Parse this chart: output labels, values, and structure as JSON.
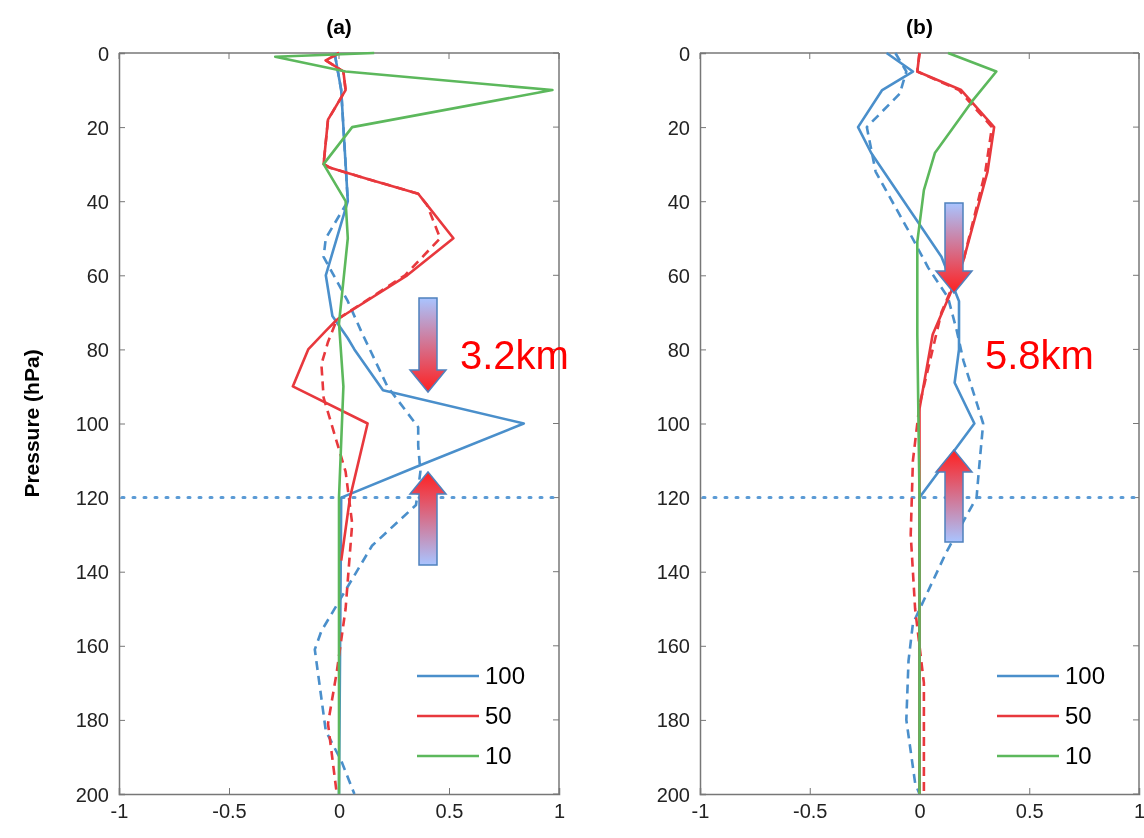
{
  "chart_data": [
    {
      "type": "line",
      "title": "(a)",
      "ylabel": "Pressure (hPa)",
      "xlim": [
        -1,
        1
      ],
      "xticks": [
        -1,
        -0.5,
        0,
        0.5,
        1
      ],
      "ylim": [
        200,
        0
      ],
      "yticks": [
        0,
        20,
        40,
        60,
        80,
        100,
        120,
        140,
        160,
        180,
        200
      ],
      "legend": "bottom right",
      "grid": false,
      "ref_lines": [
        {
          "axis": "y",
          "value": 120,
          "color": "#5b9bd5",
          "line_style": "dotted"
        }
      ],
      "annotations": [
        "3.2km"
      ],
      "series": [
        {
          "name": "100",
          "color": "#4a8fcb",
          "line_style": "solid",
          "x": [
            -0.02,
            0.01,
            0.02,
            0.03,
            0.04,
            -0.06,
            -0.03,
            0.04,
            0.07,
            0.2,
            0.84,
            0.38,
            0.01,
            0.0
          ],
          "values": [
            0,
            10,
            20,
            30,
            40,
            60,
            71,
            77,
            80,
            91,
            100,
            111,
            120,
            200
          ]
        },
        {
          "color": "#4a8fcb",
          "line_style": "dashed",
          "x": [
            -0.02,
            0.01,
            0.02,
            0.03,
            0.04,
            -0.06,
            -0.07,
            0.04,
            0.1,
            0.22,
            0.36,
            0.36,
            0.37,
            0.35,
            0.15,
            0.04,
            -0.08,
            -0.11,
            -0.06,
            0.01,
            0.07
          ],
          "values": [
            0,
            10,
            20,
            30,
            40,
            50,
            55,
            67,
            75,
            90,
            101,
            106,
            113,
            122,
            133,
            144,
            156,
            161,
            183,
            191,
            200
          ]
        },
        {
          "name": "50",
          "color": "#e8383d",
          "line_style": "solid",
          "x": [
            0.0,
            -0.06,
            0.02,
            0.03,
            -0.05,
            -0.06,
            -0.07,
            -0.04,
            0.13,
            0.36,
            0.4,
            0.52,
            0.31,
            -0.01,
            -0.06,
            -0.14,
            -0.21,
            0.13,
            0.05,
            0.01
          ],
          "values": [
            0,
            2,
            5,
            10,
            18,
            24,
            30,
            31,
            34,
            38,
            41,
            50,
            60,
            72,
            75,
            80,
            90,
            100,
            120,
            137
          ]
        },
        {
          "color": "#e8383d",
          "line_style": "dashed",
          "x": [
            0.0,
            -0.06,
            0.02,
            0.03,
            -0.05,
            -0.06,
            -0.07,
            -0.04,
            0.13,
            0.36,
            0.4,
            0.46,
            0.3,
            -0.01,
            -0.05,
            -0.08,
            -0.07,
            0.03,
            0.06,
            0.03,
            -0.01,
            -0.05,
            -0.01
          ],
          "values": [
            0,
            2,
            5,
            10,
            18,
            24,
            30,
            31,
            34,
            38,
            41,
            50,
            60,
            72,
            78,
            84,
            93,
            113,
            127,
            150,
            167,
            181,
            200
          ]
        },
        {
          "name": "10",
          "color": "#5cb85c",
          "line_style": "solid",
          "x": [
            0.16,
            -0.29,
            0.03,
            0.97,
            0.06,
            -0.07,
            0.03,
            0.04,
            0.0,
            0.02,
            0.0,
            0.0
          ],
          "values": [
            0,
            1,
            5,
            10,
            20,
            30,
            40,
            50,
            73,
            90,
            120,
            200
          ]
        }
      ]
    },
    {
      "type": "line",
      "title": "(b)",
      "xlim": [
        -1,
        1
      ],
      "xticks": [
        -1,
        -0.5,
        0,
        0.5,
        1
      ],
      "ylim": [
        200,
        0
      ],
      "yticks": [
        0,
        20,
        40,
        60,
        80,
        100,
        120,
        140,
        160,
        180,
        200
      ],
      "legend": "bottom right",
      "grid": false,
      "ref_lines": [
        {
          "axis": "y",
          "value": 120,
          "color": "#5b9bd5",
          "line_style": "dotted"
        }
      ],
      "annotations": [
        "5.8km"
      ],
      "series": [
        {
          "name": "100",
          "color": "#4a8fcb",
          "line_style": "solid",
          "x": [
            -0.15,
            -0.03,
            -0.17,
            -0.28,
            -0.22,
            0.1,
            0.18,
            0.18,
            0.18,
            0.16,
            0.25,
            0.0,
            0.0
          ],
          "values": [
            0,
            5,
            10,
            20,
            27,
            55,
            67,
            75,
            80,
            89,
            100,
            120,
            200
          ]
        },
        {
          "color": "#4a8fcb",
          "line_style": "dashed",
          "x": [
            -0.11,
            -0.06,
            -0.09,
            -0.24,
            -0.2,
            -0.05,
            0.04,
            0.13,
            0.17,
            0.2,
            0.29,
            0.27,
            0.26,
            0.12,
            -0.03,
            -0.05,
            -0.06,
            -0.02,
            0.0
          ],
          "values": [
            0,
            5,
            11,
            20,
            32,
            48,
            58,
            66,
            75,
            83,
            100,
            113,
            120,
            135,
            154,
            164,
            180,
            197,
            200
          ]
        },
        {
          "name": "50",
          "color": "#e8383d",
          "line_style": "solid",
          "x": [
            0.0,
            -0.01,
            0.19,
            0.34,
            0.31,
            0.2,
            0.14,
            0.06,
            0.0,
            0.0
          ],
          "values": [
            0,
            5,
            10,
            20,
            32,
            56,
            65,
            76,
            96,
            200
          ]
        },
        {
          "color": "#e8383d",
          "line_style": "dashed",
          "x": [
            0.0,
            -0.01,
            0.18,
            0.33,
            0.3,
            0.2,
            0.1,
            0.0,
            -0.03,
            -0.04,
            -0.02,
            0.02,
            0.02
          ],
          "values": [
            0,
            5,
            10,
            20,
            32,
            56,
            70,
            95,
            110,
            130,
            150,
            170,
            200
          ]
        },
        {
          "name": "10",
          "color": "#5cb85c",
          "line_style": "solid",
          "x": [
            0.13,
            0.35,
            0.24,
            0.07,
            0.02,
            -0.01,
            -0.01,
            0.0,
            0.0
          ],
          "values": [
            0,
            5,
            13,
            27,
            37,
            51,
            76,
            120,
            200
          ]
        }
      ]
    }
  ]
}
